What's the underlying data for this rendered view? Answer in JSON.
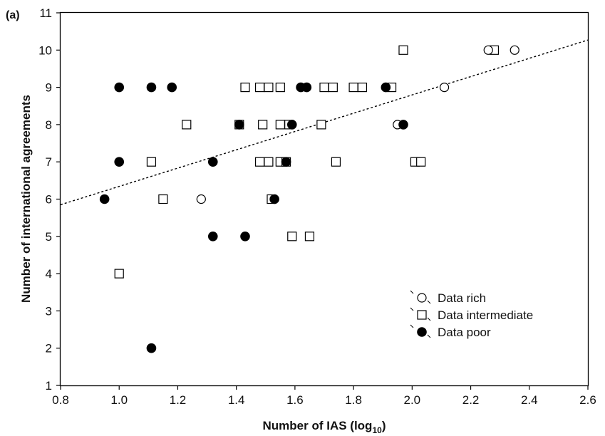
{
  "chart_data": {
    "type": "scatter",
    "panel_label": "(a)",
    "xlabel": "Number of IAS (log",
    "xlabel_sub": "10",
    "xlabel_end": ")",
    "ylabel": "Number of international agreements",
    "xlim": [
      0.8,
      2.6
    ],
    "ylim": [
      1,
      11
    ],
    "xticks": [
      "0.8",
      "1.0",
      "1.2",
      "1.4",
      "1.6",
      "1.8",
      "2.0",
      "2.2",
      "2.4",
      "2.6"
    ],
    "yticks": [
      "1",
      "2",
      "3",
      "4",
      "5",
      "6",
      "7",
      "8",
      "9",
      "10",
      "11"
    ],
    "grid": false,
    "legend_position": "bottom-right",
    "trendline": {
      "style": "dotted",
      "x": [
        0.8,
        2.6
      ],
      "y": [
        5.85,
        10.27
      ]
    },
    "series": [
      {
        "name": "Data rich",
        "marker": "open-circle",
        "points": [
          [
            1.28,
            6
          ],
          [
            1.95,
            8
          ],
          [
            2.11,
            9
          ],
          [
            2.26,
            10
          ],
          [
            2.35,
            10
          ]
        ]
      },
      {
        "name": "Data intermediate",
        "marker": "open-square",
        "points": [
          [
            1.0,
            4
          ],
          [
            1.11,
            7
          ],
          [
            1.15,
            6
          ],
          [
            1.23,
            8
          ],
          [
            1.41,
            8
          ],
          [
            1.43,
            9
          ],
          [
            1.48,
            7
          ],
          [
            1.48,
            9
          ],
          [
            1.49,
            8
          ],
          [
            1.51,
            7
          ],
          [
            1.51,
            9
          ],
          [
            1.52,
            6
          ],
          [
            1.55,
            7
          ],
          [
            1.55,
            8
          ],
          [
            1.55,
            9
          ],
          [
            1.57,
            7
          ],
          [
            1.58,
            8
          ],
          [
            1.59,
            5
          ],
          [
            1.65,
            5
          ],
          [
            1.69,
            8
          ],
          [
            1.7,
            9
          ],
          [
            1.73,
            9
          ],
          [
            1.74,
            7
          ],
          [
            1.8,
            9
          ],
          [
            1.83,
            9
          ],
          [
            1.93,
            9
          ],
          [
            1.97,
            10
          ],
          [
            2.01,
            7
          ],
          [
            2.03,
            7
          ],
          [
            2.28,
            10
          ]
        ]
      },
      {
        "name": "Data poor",
        "marker": "filled-circle",
        "points": [
          [
            0.95,
            6
          ],
          [
            1.0,
            9
          ],
          [
            1.0,
            7
          ],
          [
            1.11,
            9
          ],
          [
            1.11,
            2
          ],
          [
            1.18,
            9
          ],
          [
            1.32,
            7
          ],
          [
            1.32,
            5
          ],
          [
            1.41,
            8
          ],
          [
            1.43,
            5
          ],
          [
            1.53,
            6
          ],
          [
            1.57,
            7
          ],
          [
            1.59,
            8
          ],
          [
            1.62,
            9
          ],
          [
            1.64,
            9
          ],
          [
            1.91,
            9
          ],
          [
            1.97,
            8
          ]
        ]
      }
    ]
  }
}
